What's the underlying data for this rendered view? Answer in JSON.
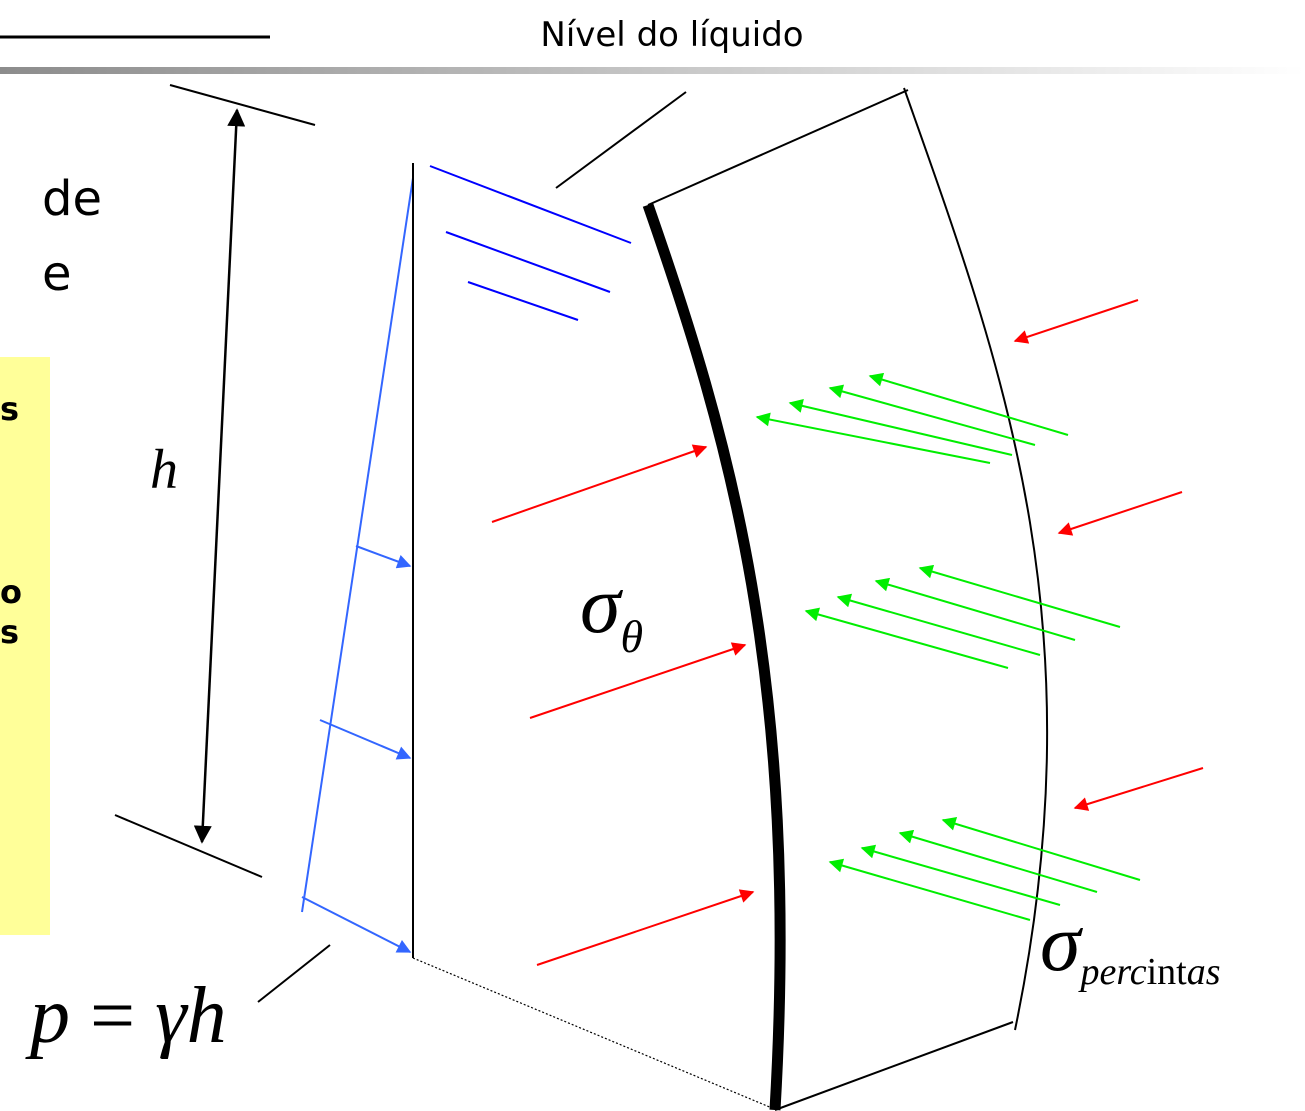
{
  "header": {
    "title_fragment": "",
    "level_label": "Nível do líquido"
  },
  "left_text": {
    "line1": "de",
    "line2": "e"
  },
  "callout_box": {
    "color": "#ffff99",
    "fragments": [
      "s",
      "o",
      "s"
    ]
  },
  "symbols": {
    "height": "h",
    "hoop_stress": {
      "base": "σ",
      "subscript": "θ"
    },
    "band_stress": {
      "base": "σ",
      "subscript_italic_1": "perc",
      "subscript_roman": "int",
      "subscript_italic_2": "as"
    },
    "pressure": {
      "lhs": "p",
      "eq": " = ",
      "gamma": "γ",
      "h": "h"
    }
  },
  "colors": {
    "liquid_lines": "#0000ff",
    "pressure_diagram": "#3366ff",
    "red_arrows": "#ff0000",
    "green_arrows": "#00ee00",
    "wall": "#000000",
    "header_rule_dark": "#8c8c8c",
    "header_rule_light": "#ffffff"
  }
}
